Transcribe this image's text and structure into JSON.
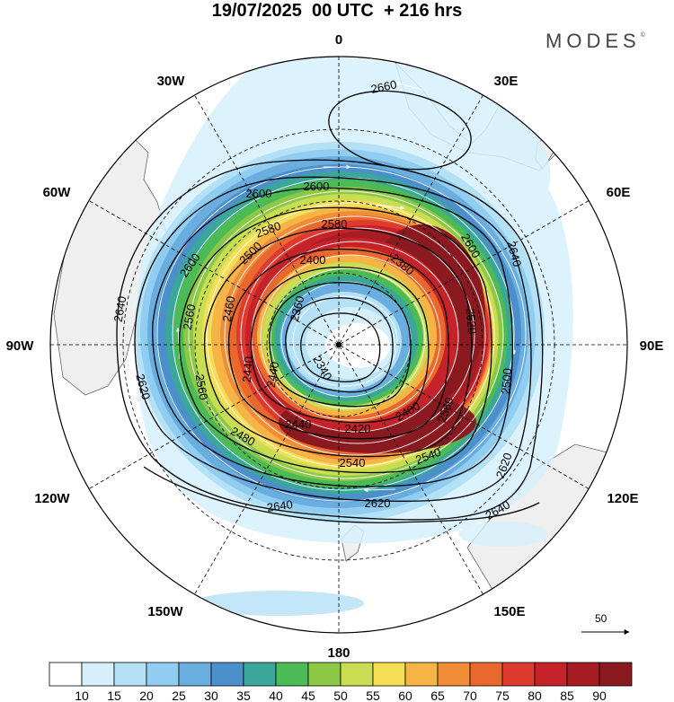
{
  "title": {
    "date": "19/07/2025",
    "time": "00 UTC",
    "lead": "+ 216 hrs"
  },
  "brand": {
    "name": "MODES",
    "mark": "©"
  },
  "longitude_labels": [
    "0",
    "30E",
    "60E",
    "90E",
    "120E",
    "150E",
    "180",
    "150W",
    "120W",
    "90W",
    "60W",
    "30W"
  ],
  "contour_labels": {
    "c2660": "2660",
    "c2640": "2640",
    "c2620": "2620",
    "c2600": "2600",
    "c2580": "2580",
    "c2560": "2560",
    "c2540": "2540",
    "c2520": "2520",
    "c2500": "2500",
    "c2480": "2480",
    "c2460": "2460",
    "c2440": "2440",
    "c2420": "2420",
    "c2400": "2400",
    "c2380": "2380",
    "c2360": "2360",
    "c2340": "2340"
  },
  "colorbar": {
    "ticks": [
      "10",
      "15",
      "20",
      "25",
      "30",
      "35",
      "40",
      "45",
      "50",
      "55",
      "60",
      "65",
      "70",
      "75",
      "80",
      "85",
      "90"
    ],
    "colors": [
      "#ffffff",
      "#d6f0fb",
      "#b4e1f6",
      "#91cdf0",
      "#6aaee0",
      "#4b8fcb",
      "#3ba79a",
      "#4cba55",
      "#8cc846",
      "#c8dd52",
      "#f5de55",
      "#f7b446",
      "#f18d36",
      "#e9682d",
      "#de3b2e",
      "#c5222a",
      "#a71d24",
      "#8a1a20"
    ]
  },
  "reference_vector": {
    "value": "50"
  },
  "styles": {
    "land": "#efefef",
    "coast": "#666666",
    "contour": "#000000"
  }
}
